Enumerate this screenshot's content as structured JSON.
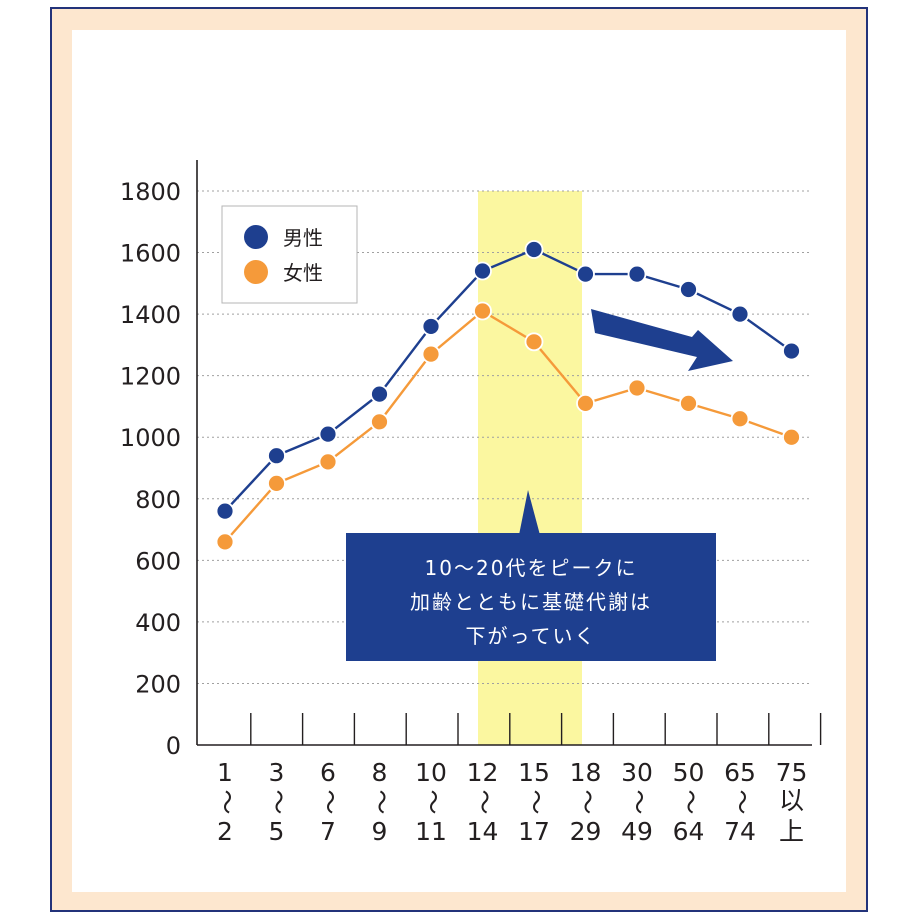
{
  "chart_data": {
    "type": "line",
    "categories": [
      [
        "1",
        "〜",
        "2"
      ],
      [
        "3",
        "〜",
        "5"
      ],
      [
        "6",
        "〜",
        "7"
      ],
      [
        "8",
        "〜",
        "9"
      ],
      [
        "10",
        "〜",
        "11"
      ],
      [
        "12",
        "〜",
        "14"
      ],
      [
        "15",
        "〜",
        "17"
      ],
      [
        "18",
        "〜",
        "29"
      ],
      [
        "30",
        "〜",
        "49"
      ],
      [
        "50",
        "〜",
        "64"
      ],
      [
        "65",
        "〜",
        "74"
      ],
      [
        "75",
        "以",
        "上"
      ]
    ],
    "series": [
      {
        "name": "男性",
        "color": "#1e3f8f",
        "values": [
          760,
          940,
          1010,
          1140,
          1360,
          1540,
          1610,
          1530,
          1530,
          1480,
          1400,
          1280
        ]
      },
      {
        "name": "女性",
        "color": "#f59a3a",
        "values": [
          660,
          850,
          920,
          1050,
          1270,
          1410,
          1310,
          1110,
          1160,
          1110,
          1060,
          1000
        ]
      }
    ],
    "ylim": [
      0,
      1800
    ],
    "yticks": [
      0,
      200,
      400,
      600,
      800,
      1000,
      1200,
      1400,
      1600,
      1800
    ],
    "grid": "horizontal dotted",
    "highlight_categories": [
      "12〜14",
      "15〜17"
    ],
    "highlight_color": "#fbf7a0",
    "legend_position": "top-left",
    "annotation": {
      "lines": [
        "10〜20代をピークに",
        "加齢とともに基礎代謝は",
        "下がっていく"
      ],
      "color": "#1e3f8f"
    }
  }
}
